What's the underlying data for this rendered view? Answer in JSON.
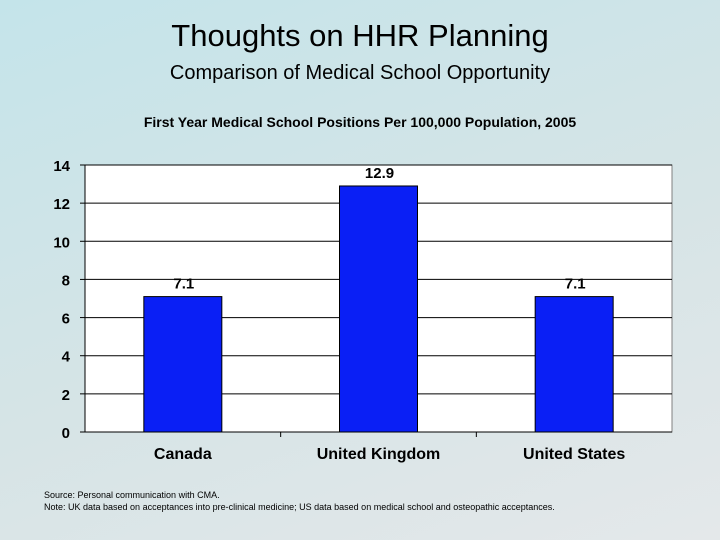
{
  "slide": {
    "title": "Thoughts on HHR Planning",
    "subtitle": "Comparison of Medical School Opportunity"
  },
  "chart_data": {
    "type": "bar",
    "title": "First Year Medical School Positions Per 100,000 Population, 2005",
    "categories": [
      "Canada",
      "United Kingdom",
      "United States"
    ],
    "values": [
      7.1,
      12.9,
      7.1
    ],
    "data_labels": [
      "7.1",
      "12.9",
      "7.1"
    ],
    "ylim": [
      0,
      14
    ],
    "yticks": [
      0,
      2,
      4,
      6,
      8,
      10,
      12,
      14
    ],
    "xlabel": "",
    "ylabel": "",
    "grid": true,
    "legend": "none",
    "bar_color": "#0a1ff5",
    "plot_background": "#ffffff",
    "gridline_color": "#000000"
  },
  "footer": {
    "source": "Source: Personal communication with CMA.",
    "note": "Note: UK data based on acceptances into pre-clinical medicine; US data based on medical school and osteopathic acceptances."
  }
}
